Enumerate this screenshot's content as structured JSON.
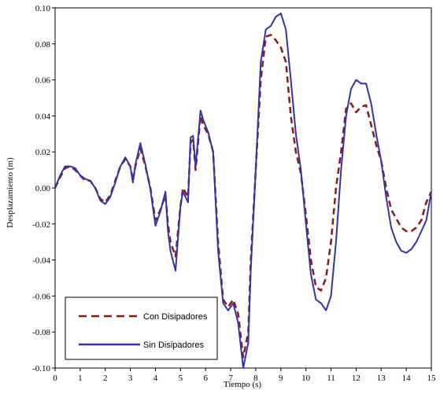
{
  "chart_data": {
    "type": "line",
    "title": "",
    "xlabel": "Tiempo (s)",
    "ylabel": "Desplazamiento (m)",
    "xlim": [
      0,
      15
    ],
    "ylim": [
      -0.1,
      0.1
    ],
    "x_ticks": [
      "0",
      "1",
      "2",
      "3",
      "4",
      "5",
      "6",
      "7",
      "8",
      "9",
      "10",
      "11",
      "12",
      "13",
      "14",
      "15"
    ],
    "y_ticks": [
      "-0.10",
      "-0.08",
      "-0.06",
      "-0.04",
      "-0.02",
      "0.00",
      "0.02",
      "0.04",
      "0.06",
      "0.08",
      "0.10"
    ],
    "grid": false,
    "legend_position": "bottom-left",
    "series": [
      {
        "name": "Con Disipadores",
        "color": "#8b1a1a",
        "style": "dashed",
        "x": [
          0,
          0.2,
          0.4,
          0.6,
          0.8,
          1.0,
          1.2,
          1.4,
          1.6,
          1.8,
          2.0,
          2.2,
          2.4,
          2.6,
          2.8,
          3.0,
          3.1,
          3.2,
          3.4,
          3.6,
          3.8,
          4.0,
          4.2,
          4.4,
          4.5,
          4.6,
          4.8,
          5.0,
          5.1,
          5.3,
          5.4,
          5.5,
          5.6,
          5.8,
          5.9,
          6.1,
          6.3,
          6.5,
          6.7,
          6.9,
          7.1,
          7.3,
          7.5,
          7.7,
          7.8,
          8.0,
          8.2,
          8.4,
          8.6,
          8.8,
          9.0,
          9.2,
          9.4,
          9.6,
          9.8,
          10.0,
          10.2,
          10.4,
          10.6,
          10.8,
          11.0,
          11.2,
          11.4,
          11.6,
          11.8,
          12.0,
          12.2,
          12.4,
          12.6,
          12.8,
          13.0,
          13.2,
          13.4,
          13.6,
          13.8,
          14.0,
          14.2,
          14.4,
          14.6,
          14.8,
          15.0
        ],
        "values": [
          0.0,
          0.006,
          0.011,
          0.012,
          0.01,
          0.007,
          0.004,
          0.004,
          0.0,
          -0.006,
          -0.008,
          -0.004,
          0.004,
          0.012,
          0.016,
          0.012,
          0.004,
          0.012,
          0.022,
          0.012,
          0.0,
          -0.018,
          -0.012,
          -0.004,
          -0.02,
          -0.03,
          -0.038,
          -0.01,
          0.0,
          -0.005,
          0.025,
          0.027,
          0.01,
          0.04,
          0.035,
          0.03,
          0.02,
          -0.03,
          -0.062,
          -0.066,
          -0.062,
          -0.07,
          -0.094,
          -0.08,
          -0.04,
          0.01,
          0.06,
          0.084,
          0.085,
          0.082,
          0.078,
          0.07,
          0.04,
          0.02,
          0.008,
          -0.015,
          -0.04,
          -0.055,
          -0.057,
          -0.05,
          -0.03,
          0.0,
          0.02,
          0.044,
          0.047,
          0.042,
          0.045,
          0.046,
          0.035,
          0.024,
          0.015,
          0.0,
          -0.012,
          -0.017,
          -0.022,
          -0.024,
          -0.024,
          -0.022,
          -0.018,
          -0.008,
          -0.002
        ]
      },
      {
        "name": "Sin Disipadores",
        "color": "#3333aa",
        "style": "solid",
        "x": [
          0,
          0.2,
          0.4,
          0.6,
          0.8,
          1.0,
          1.2,
          1.4,
          1.6,
          1.8,
          2.0,
          2.2,
          2.4,
          2.6,
          2.8,
          3.0,
          3.1,
          3.2,
          3.4,
          3.6,
          3.8,
          4.0,
          4.2,
          4.4,
          4.5,
          4.6,
          4.8,
          5.0,
          5.1,
          5.3,
          5.4,
          5.5,
          5.6,
          5.8,
          5.9,
          6.1,
          6.3,
          6.5,
          6.7,
          6.9,
          7.1,
          7.3,
          7.5,
          7.7,
          7.8,
          8.0,
          8.2,
          8.4,
          8.6,
          8.8,
          9.0,
          9.2,
          9.4,
          9.6,
          9.8,
          10.0,
          10.2,
          10.4,
          10.6,
          10.8,
          11.0,
          11.2,
          11.4,
          11.6,
          11.8,
          12.0,
          12.2,
          12.4,
          12.6,
          12.8,
          13.0,
          13.2,
          13.4,
          13.6,
          13.8,
          14.0,
          14.2,
          14.4,
          14.6,
          14.8,
          15.0
        ],
        "values": [
          0.0,
          0.007,
          0.012,
          0.012,
          0.011,
          0.007,
          0.005,
          0.004,
          0.0,
          -0.007,
          -0.009,
          -0.005,
          0.003,
          0.012,
          0.017,
          0.012,
          0.003,
          0.013,
          0.025,
          0.013,
          -0.001,
          -0.021,
          -0.013,
          -0.002,
          -0.024,
          -0.035,
          -0.046,
          -0.01,
          -0.002,
          -0.008,
          0.028,
          0.029,
          0.012,
          0.043,
          0.038,
          0.031,
          0.02,
          -0.035,
          -0.064,
          -0.068,
          -0.064,
          -0.075,
          -0.1,
          -0.086,
          -0.046,
          0.01,
          0.07,
          0.088,
          0.09,
          0.095,
          0.097,
          0.088,
          0.06,
          0.03,
          0.01,
          -0.02,
          -0.048,
          -0.062,
          -0.064,
          -0.068,
          -0.06,
          -0.03,
          0.01,
          0.04,
          0.055,
          0.06,
          0.058,
          0.058,
          0.047,
          0.03,
          0.015,
          -0.005,
          -0.022,
          -0.03,
          -0.035,
          -0.036,
          -0.034,
          -0.03,
          -0.024,
          -0.018,
          -0.002
        ]
      }
    ]
  }
}
